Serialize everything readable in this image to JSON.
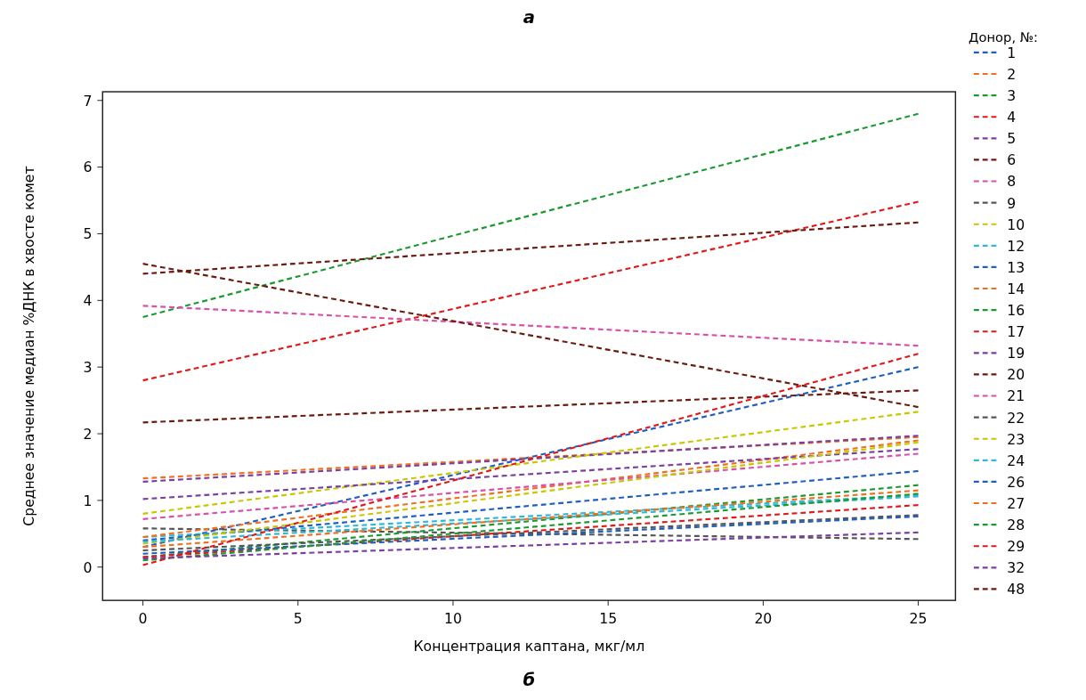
{
  "chart_data": {
    "type": "line",
    "xlabel": "Концентрация каптана, мкг/мл",
    "ylabel": "Среднее значение медиан %ДНК в хвосте комет",
    "legend_title": "Донор, №:",
    "legend": "right",
    "line_style": "dashed",
    "marker": "none",
    "grid": false,
    "annotations": [
      "а",
      "б"
    ],
    "xlim": [
      -1.3,
      26.2
    ],
    "xticks": [
      0,
      5,
      10,
      15,
      20,
      25
    ],
    "ylim": [
      -0.5,
      7.13
    ],
    "yticks": [
      0,
      1,
      2,
      3,
      4,
      5,
      6,
      7
    ],
    "x": [
      0,
      25
    ],
    "series": [
      {
        "name": "1",
        "color": "#1f5fbf",
        "values": [
          0.3,
          3.0
        ]
      },
      {
        "name": "2",
        "color": "#f07020",
        "values": [
          1.33,
          1.95
        ]
      },
      {
        "name": "3",
        "color": "#1a9a30",
        "values": [
          3.75,
          6.8
        ]
      },
      {
        "name": "4",
        "color": "#e01a1a",
        "values": [
          2.8,
          5.48
        ]
      },
      {
        "name": "5",
        "color": "#7a3fa0",
        "values": [
          1.28,
          1.97
        ]
      },
      {
        "name": "6",
        "color": "#6b1a10",
        "values": [
          4.4,
          5.17
        ]
      },
      {
        "name": "8",
        "color": "#d850a8",
        "values": [
          3.92,
          3.32
        ]
      },
      {
        "name": "9",
        "color": "#555555",
        "values": [
          0.58,
          0.42
        ]
      },
      {
        "name": "10",
        "color": "#c8c800",
        "values": [
          0.8,
          2.33
        ]
      },
      {
        "name": "12",
        "color": "#30b8d8",
        "values": [
          0.45,
          1.08
        ]
      },
      {
        "name": "13",
        "color": "#1f5fbf",
        "values": [
          0.4,
          1.44
        ]
      },
      {
        "name": "14",
        "color": "#f07020",
        "values": [
          0.45,
          1.9
        ]
      },
      {
        "name": "16",
        "color": "#1a9a30",
        "values": [
          0.15,
          1.23
        ]
      },
      {
        "name": "17",
        "color": "#e01a1a",
        "values": [
          0.15,
          0.93
        ]
      },
      {
        "name": "19",
        "color": "#7a3fa0",
        "values": [
          1.02,
          1.77
        ]
      },
      {
        "name": "20",
        "color": "#6b1a10",
        "values": [
          2.17,
          2.65
        ]
      },
      {
        "name": "21",
        "color": "#d850a8",
        "values": [
          0.72,
          1.7
        ]
      },
      {
        "name": "22",
        "color": "#555555",
        "values": [
          0.25,
          0.78
        ]
      },
      {
        "name": "23",
        "color": "#c8c800",
        "values": [
          0.35,
          1.87
        ]
      },
      {
        "name": "24",
        "color": "#30b8d8",
        "values": [
          0.38,
          1.06
        ]
      },
      {
        "name": "26",
        "color": "#1f5fbf",
        "values": [
          0.2,
          0.76
        ]
      },
      {
        "name": "27",
        "color": "#f07020",
        "values": [
          0.3,
          1.15
        ]
      },
      {
        "name": "28",
        "color": "#1a9a30",
        "values": [
          0.1,
          1.1
        ]
      },
      {
        "name": "29",
        "color": "#e01a1a",
        "values": [
          0.03,
          3.2
        ]
      },
      {
        "name": "32",
        "color": "#7a3fa0",
        "values": [
          0.13,
          0.52
        ]
      },
      {
        "name": "48",
        "color": "#6b1a10",
        "values": [
          4.55,
          2.4
        ]
      }
    ]
  }
}
